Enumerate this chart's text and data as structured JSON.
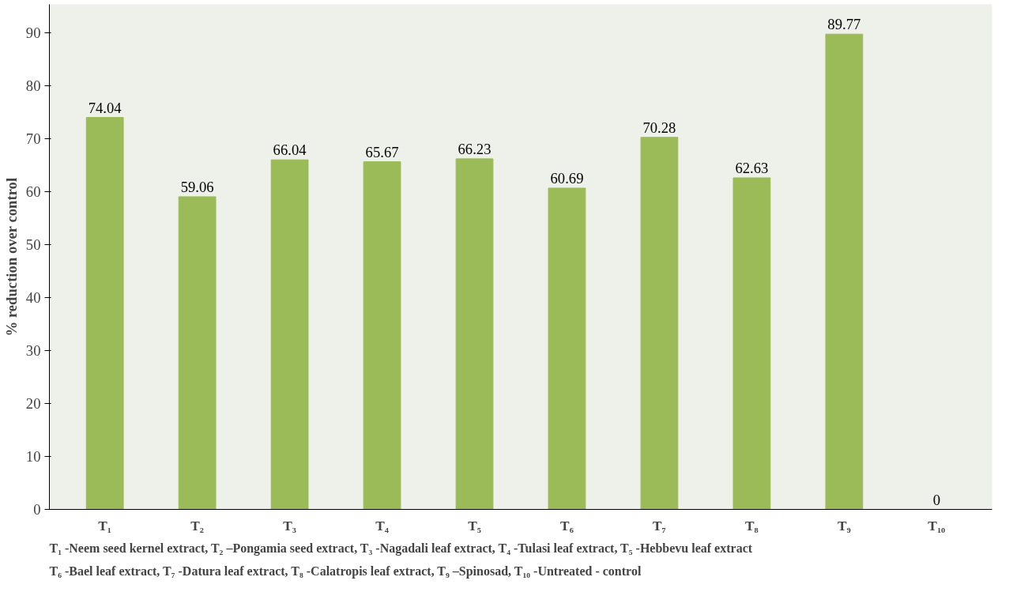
{
  "chart_data": {
    "type": "bar",
    "ylabel": "% reduction over control",
    "categories": [
      "T₁",
      "T₂",
      "T₃",
      "T₄",
      "T₅",
      "T₆",
      "T₇",
      "T₈",
      "T₉",
      "T₁₀"
    ],
    "values": [
      74.04,
      59.06,
      66.04,
      65.67,
      66.23,
      60.69,
      70.28,
      62.63,
      89.77,
      0
    ],
    "color": "#9bbb59",
    "ylim": [
      0,
      90
    ],
    "yticks": [
      0,
      10,
      20,
      30,
      40,
      50,
      60,
      70,
      80,
      90
    ],
    "grid": false,
    "data_labels": true,
    "annotations": [
      "T₁ -Neem seed kernel extract, T₂ –Pongamia seed extract, T₃ -Nagadali leaf extract, T₄ -Tulasi leaf extract, T₅ -Hebbevu leaf extract",
      "T₆ -Bael leaf extract, T₇ -Datura leaf extract, T₈ -Calatropis leaf extract, T₉ –Spinosad, T₁₀ -Untreated - control"
    ]
  }
}
